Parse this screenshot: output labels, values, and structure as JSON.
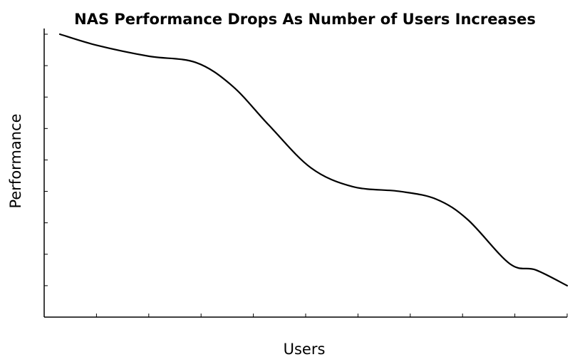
{
  "chart_data": {
    "type": "line",
    "title": "NAS Performance Drops As Number of Users Increases",
    "xlabel": "Users",
    "ylabel": "Performance",
    "xlim": [
      0,
      10
    ],
    "ylim": [
      0,
      9
    ],
    "x_tick_count": 10,
    "y_tick_count": 9,
    "x_tick_labels": false,
    "y_tick_labels": false,
    "grid": false,
    "legend": "none",
    "series": [
      {
        "color": "#000000",
        "x": [
          0.3,
          1.0,
          2.0,
          2.9,
          3.6,
          4.3,
          5.1,
          5.9,
          6.8,
          7.5,
          8.1,
          8.9,
          9.4,
          10.0
        ],
        "y": [
          9.0,
          8.65,
          8.3,
          8.1,
          7.35,
          6.1,
          4.75,
          4.15,
          4.0,
          3.75,
          3.1,
          1.7,
          1.5,
          1.0
        ]
      }
    ]
  }
}
